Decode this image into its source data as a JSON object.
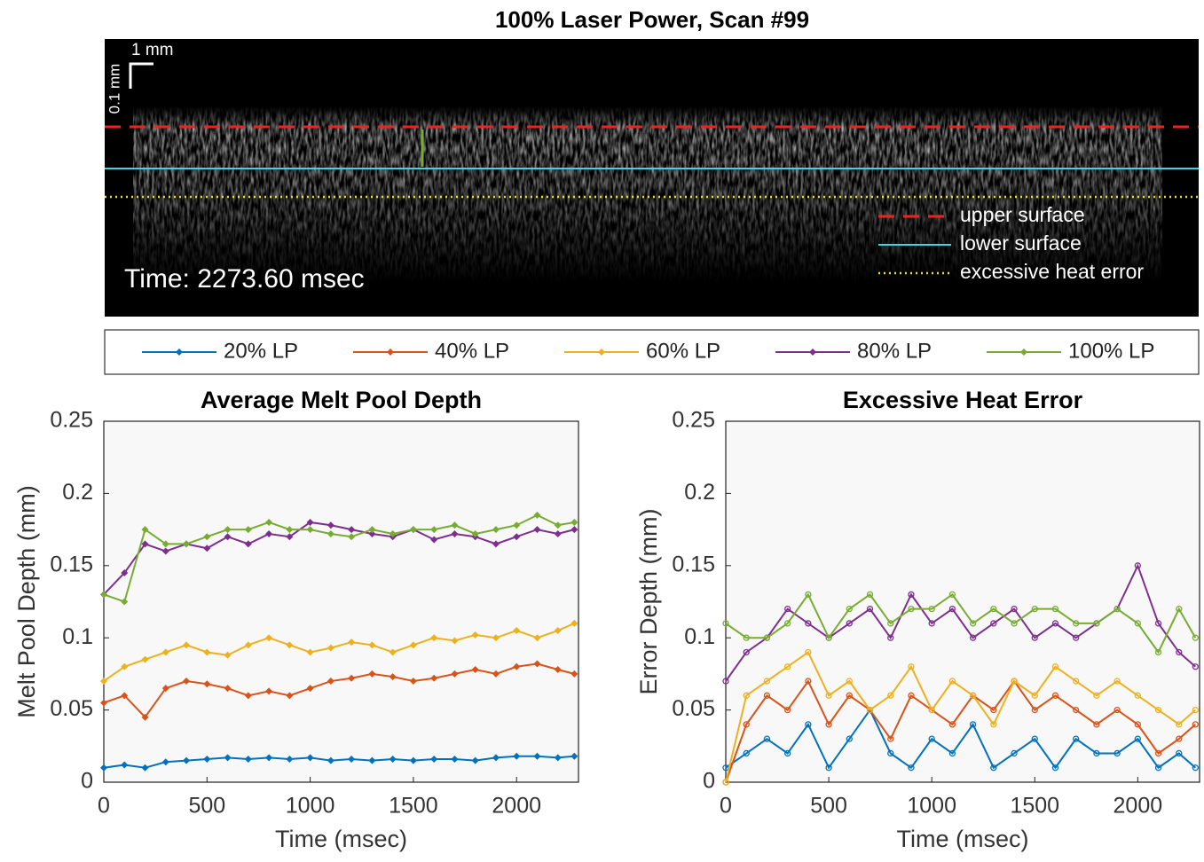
{
  "image_panel": {
    "title": "100% Laser Power, Scan #99",
    "scale_x_label": "1 mm",
    "scale_y_label": "0.1 mm",
    "time_label": "Time: 2273.60 msec",
    "legend": [
      {
        "name": "upper surface",
        "color": "#e8261f"
      },
      {
        "name": "lower surface",
        "color": "#3fd6e0"
      },
      {
        "name": "excessive heat error",
        "color": "#e6e22a"
      }
    ]
  },
  "chart_data": [
    {
      "type": "line",
      "title": "Average Melt Pool Depth",
      "xlabel": "Time (msec)",
      "ylabel": "Melt Pool Depth (mm)",
      "marker": "diamond",
      "xlim": [
        0,
        2300
      ],
      "ylim": [
        0,
        0.25
      ],
      "xticks": [
        0,
        500,
        1000,
        1500,
        2000
      ],
      "yticks": [
        0,
        0.05,
        0.1,
        0.15,
        0.2,
        0.25
      ],
      "grid": false,
      "x": [
        0,
        100,
        200,
        300,
        400,
        500,
        600,
        700,
        800,
        900,
        1000,
        1100,
        1200,
        1300,
        1400,
        1500,
        1600,
        1700,
        1800,
        1900,
        2000,
        2100,
        2200,
        2280
      ],
      "series": [
        {
          "name": "20% LP",
          "color": "#0072bd",
          "values": [
            0.01,
            0.012,
            0.01,
            0.014,
            0.015,
            0.016,
            0.017,
            0.016,
            0.017,
            0.016,
            0.017,
            0.015,
            0.016,
            0.015,
            0.016,
            0.015,
            0.016,
            0.016,
            0.015,
            0.017,
            0.018,
            0.018,
            0.017,
            0.018
          ]
        },
        {
          "name": "40% LP",
          "color": "#d95319",
          "values": [
            0.055,
            0.06,
            0.045,
            0.065,
            0.07,
            0.068,
            0.065,
            0.06,
            0.063,
            0.06,
            0.065,
            0.07,
            0.072,
            0.075,
            0.073,
            0.07,
            0.072,
            0.075,
            0.078,
            0.075,
            0.08,
            0.082,
            0.078,
            0.075
          ]
        },
        {
          "name": "60% LP",
          "color": "#edb120",
          "values": [
            0.07,
            0.08,
            0.085,
            0.09,
            0.095,
            0.09,
            0.088,
            0.095,
            0.1,
            0.095,
            0.09,
            0.093,
            0.097,
            0.095,
            0.09,
            0.095,
            0.1,
            0.098,
            0.102,
            0.1,
            0.105,
            0.1,
            0.105,
            0.11
          ]
        },
        {
          "name": "80% LP",
          "color": "#7e2f8e",
          "values": [
            0.13,
            0.145,
            0.165,
            0.16,
            0.165,
            0.162,
            0.17,
            0.165,
            0.172,
            0.17,
            0.18,
            0.178,
            0.175,
            0.172,
            0.17,
            0.175,
            0.168,
            0.172,
            0.17,
            0.165,
            0.17,
            0.175,
            0.172,
            0.175
          ]
        },
        {
          "name": "100% LP",
          "color": "#77ac30",
          "values": [
            0.13,
            0.125,
            0.175,
            0.165,
            0.165,
            0.17,
            0.175,
            0.175,
            0.18,
            0.175,
            0.175,
            0.172,
            0.17,
            0.175,
            0.172,
            0.175,
            0.175,
            0.178,
            0.172,
            0.175,
            0.178,
            0.185,
            0.178,
            0.18
          ]
        }
      ]
    },
    {
      "type": "line",
      "title": "Excessive Heat Error",
      "xlabel": "Time (msec)",
      "ylabel": "Error Depth (mm)",
      "marker": "circle",
      "xlim": [
        0,
        2300
      ],
      "ylim": [
        0,
        0.25
      ],
      "xticks": [
        0,
        500,
        1000,
        1500,
        2000
      ],
      "yticks": [
        0,
        0.05,
        0.1,
        0.15,
        0.2,
        0.25
      ],
      "grid": false,
      "x": [
        0,
        100,
        200,
        300,
        400,
        500,
        600,
        700,
        800,
        900,
        1000,
        1100,
        1200,
        1300,
        1400,
        1500,
        1600,
        1700,
        1800,
        1900,
        2000,
        2100,
        2200,
        2280
      ],
      "series": [
        {
          "name": "20% LP",
          "color": "#0072bd",
          "values": [
            0.01,
            0.02,
            0.03,
            0.02,
            0.04,
            0.01,
            0.03,
            0.05,
            0.02,
            0.01,
            0.03,
            0.02,
            0.04,
            0.01,
            0.02,
            0.03,
            0.01,
            0.03,
            0.02,
            0.02,
            0.03,
            0.01,
            0.02,
            0.01
          ]
        },
        {
          "name": "40% LP",
          "color": "#d95319",
          "values": [
            0,
            0.04,
            0.06,
            0.05,
            0.07,
            0.04,
            0.06,
            0.05,
            0.03,
            0.06,
            0.05,
            0.04,
            0.06,
            0.05,
            0.07,
            0.05,
            0.06,
            0.05,
            0.04,
            0.05,
            0.04,
            0.02,
            0.03,
            0.04
          ]
        },
        {
          "name": "60% LP",
          "color": "#edb120",
          "values": [
            0,
            0.06,
            0.07,
            0.08,
            0.09,
            0.06,
            0.07,
            0.05,
            0.06,
            0.08,
            0.05,
            0.07,
            0.06,
            0.04,
            0.07,
            0.06,
            0.08,
            0.07,
            0.06,
            0.07,
            0.06,
            0.05,
            0.04,
            0.05
          ]
        },
        {
          "name": "80% LP",
          "color": "#7e2f8e",
          "values": [
            0.07,
            0.09,
            0.1,
            0.12,
            0.11,
            0.1,
            0.11,
            0.12,
            0.1,
            0.13,
            0.11,
            0.12,
            0.1,
            0.11,
            0.12,
            0.1,
            0.11,
            0.1,
            0.11,
            0.12,
            0.15,
            0.11,
            0.09,
            0.08
          ]
        },
        {
          "name": "100% LP",
          "color": "#77ac30",
          "values": [
            0.11,
            0.1,
            0.1,
            0.11,
            0.13,
            0.1,
            0.12,
            0.13,
            0.11,
            0.12,
            0.12,
            0.13,
            0.11,
            0.12,
            0.11,
            0.12,
            0.12,
            0.11,
            0.11,
            0.12,
            0.11,
            0.09,
            0.12,
            0.1
          ]
        }
      ]
    }
  ]
}
